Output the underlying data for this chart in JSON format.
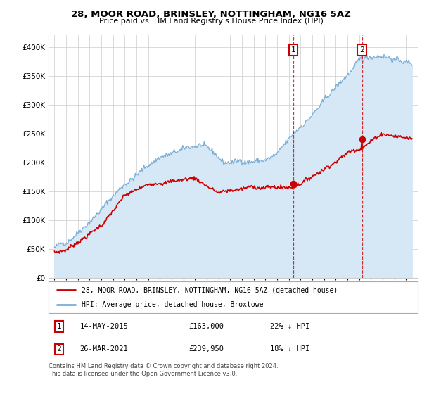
{
  "title": "28, MOOR ROAD, BRINSLEY, NOTTINGHAM, NG16 5AZ",
  "subtitle": "Price paid vs. HM Land Registry's House Price Index (HPI)",
  "hpi_label": "HPI: Average price, detached house, Broxtowe",
  "property_label": "28, MOOR ROAD, BRINSLEY, NOTTINGHAM, NG16 5AZ (detached house)",
  "hpi_color": "#7aaed6",
  "hpi_fill_color": "#d6e8f5",
  "property_color": "#cc0000",
  "annotation1_date": "14-MAY-2015",
  "annotation1_price": "£163,000",
  "annotation1_hpi": "22% ↓ HPI",
  "annotation1_year": 2015.37,
  "annotation1_value": 163000,
  "annotation2_date": "26-MAR-2021",
  "annotation2_price": "£239,950",
  "annotation2_hpi": "18% ↓ HPI",
  "annotation2_year": 2021.23,
  "annotation2_value": 239950,
  "ylim": [
    0,
    420000
  ],
  "yticks": [
    0,
    50000,
    100000,
    150000,
    200000,
    250000,
    300000,
    350000,
    400000
  ],
  "footer": "Contains HM Land Registry data © Crown copyright and database right 2024.\nThis data is licensed under the Open Government Licence v3.0.",
  "background_color": "#ffffff",
  "grid_color": "#cccccc",
  "hpi_seed": 42,
  "prop_seed": 7
}
